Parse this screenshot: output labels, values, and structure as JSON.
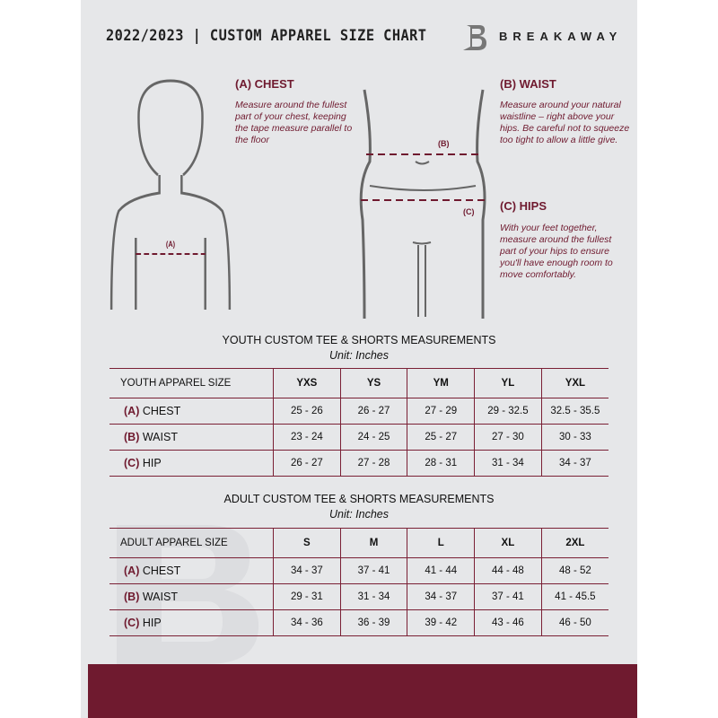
{
  "header": {
    "title": "2022/2023  |  CUSTOM APPAREL SIZE CHART",
    "brand": "BREAKAWAY",
    "logo_letter": "B"
  },
  "colors": {
    "accent": "#6f1a2f",
    "background": "#e6e7e9"
  },
  "measures": {
    "chest": {
      "heading": "(A) CHEST",
      "text": "Measure around the fullest part of your chest, keeping the tape measure parallel to the floor",
      "marker": "(A)"
    },
    "waist": {
      "heading": "(B) WAIST",
      "text": "Measure around your natural waistline – right above your hips. Be careful not to squeeze too tight to allow a little give.",
      "marker": "(B)"
    },
    "hips": {
      "heading": "(C) HIPS",
      "text": "With your feet together, measure around the fullest part of your hips to ensure you'll have enough room to move comfortably.",
      "marker": "(C)"
    }
  },
  "youth": {
    "title": "YOUTH CUSTOM TEE & SHORTS MEASUREMENTS",
    "unit": "Unit: Inches",
    "size_label": "YOUTH APPAREL SIZE",
    "sizes": [
      "YXS",
      "YS",
      "YM",
      "YL",
      "YXL"
    ],
    "rows": [
      {
        "code": "(A)",
        "name": "CHEST",
        "values": [
          "25 - 26",
          "26 - 27",
          "27 - 29",
          "29 - 32.5",
          "32.5 - 35.5"
        ]
      },
      {
        "code": "(B)",
        "name": "WAIST",
        "values": [
          "23 - 24",
          "24 - 25",
          "25 - 27",
          "27 - 30",
          "30 - 33"
        ]
      },
      {
        "code": "(C)",
        "name": "HIP",
        "values": [
          "26 - 27",
          "27 - 28",
          "28 - 31",
          "31 - 34",
          "34 - 37"
        ]
      }
    ]
  },
  "adult": {
    "title": "ADULT CUSTOM TEE & SHORTS MEASUREMENTS",
    "unit": "Unit: Inches",
    "size_label": "ADULT APPAREL SIZE",
    "sizes": [
      "S",
      "M",
      "L",
      "XL",
      "2XL"
    ],
    "rows": [
      {
        "code": "(A)",
        "name": "CHEST",
        "values": [
          "34 - 37",
          "37 - 41",
          "41 - 44",
          "44 - 48",
          "48 - 52"
        ]
      },
      {
        "code": "(B)",
        "name": "WAIST",
        "values": [
          "29 - 31",
          "31 - 34",
          "34 - 37",
          "37 - 41",
          "41 - 45.5"
        ]
      },
      {
        "code": "(C)",
        "name": "HIP",
        "values": [
          "34 - 36",
          "36 - 39",
          "39 - 42",
          "43 - 46",
          "46 - 50"
        ]
      }
    ]
  }
}
